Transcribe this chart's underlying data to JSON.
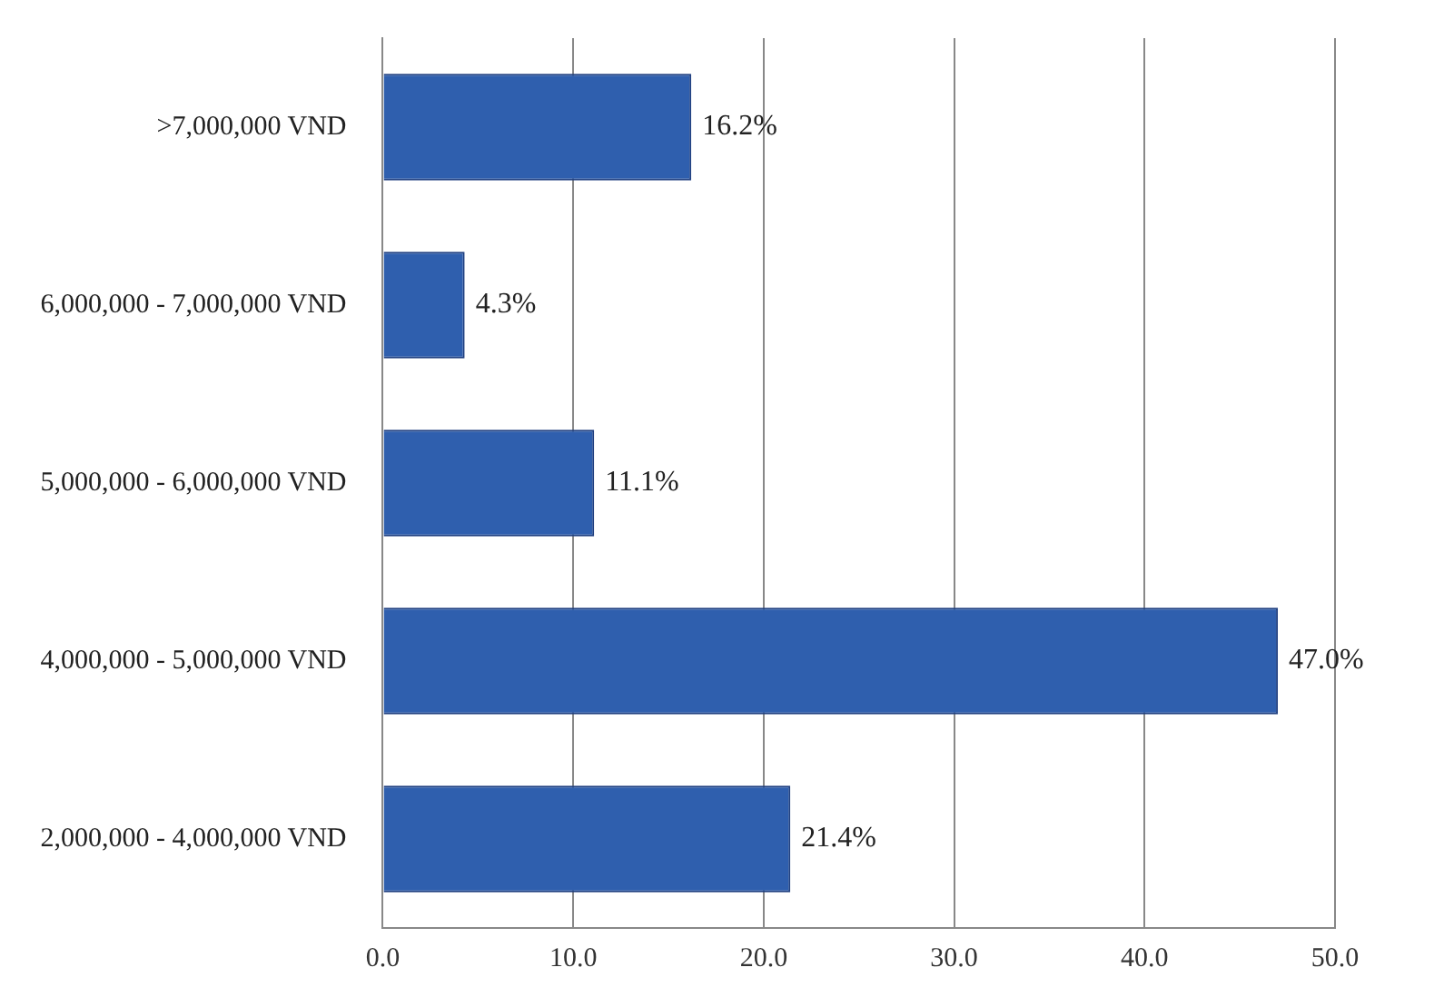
{
  "chart_data": {
    "type": "bar",
    "orientation": "horizontal",
    "categories": [
      ">7,000,000 VND",
      "6,000,000 - 7,000,000 VND",
      "5,000,000 - 6,000,000 VND",
      "4,000,000 - 5,000,000 VND",
      "2,000,000 - 4,000,000 VND"
    ],
    "values": [
      16.2,
      4.3,
      11.1,
      47.0,
      21.4
    ],
    "value_labels": [
      "16.2%",
      "4.3%",
      "11.1%",
      "47.0%",
      "21.4%"
    ],
    "color": "#2f5fae",
    "xlim": [
      0,
      50
    ],
    "xticks": [
      {
        "value": 0,
        "label": "0.0"
      },
      {
        "value": 10,
        "label": "10.0"
      },
      {
        "value": 20,
        "label": "20.0"
      },
      {
        "value": 30,
        "label": "30.0"
      },
      {
        "value": 40,
        "label": "40.0"
      },
      {
        "value": 50,
        "label": "50.0"
      }
    ],
    "grid": "x"
  }
}
